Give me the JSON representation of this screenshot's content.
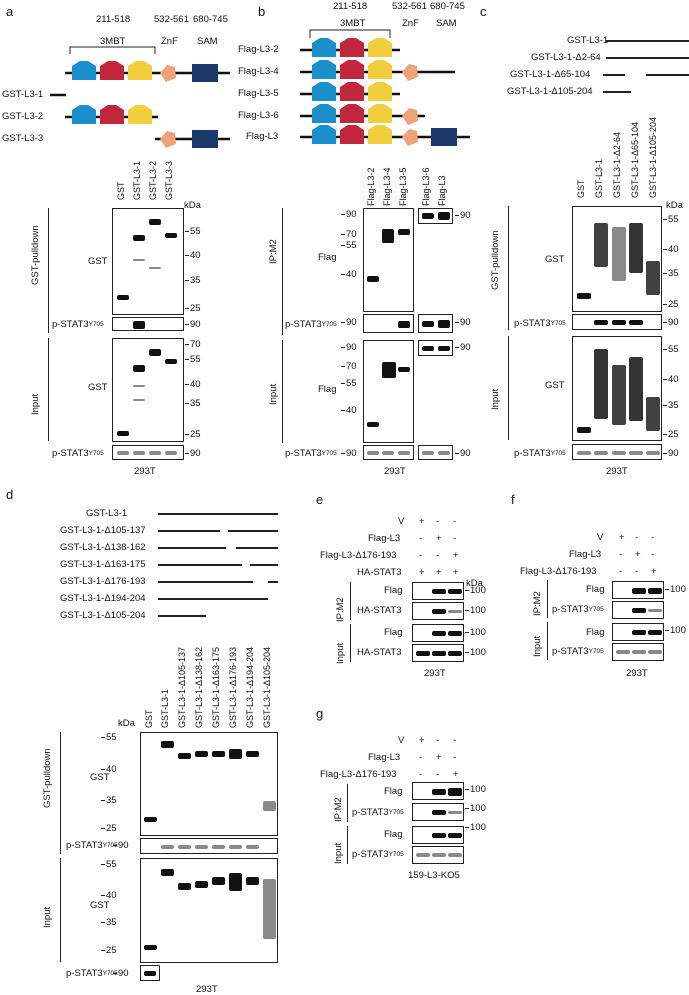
{
  "panels": {
    "a": {
      "letter": "a",
      "domain_ranges": [
        "211-518",
        "532-561",
        "680-745"
      ],
      "domain_names": [
        "3MBT",
        "ZnF",
        "SAM"
      ],
      "constructs": [
        "GST-L3-1",
        "GST-L3-2",
        "GST-L3-3"
      ],
      "lanes": [
        "GST",
        "GST-L3-1",
        "GST-L3-2",
        "GST-L3-3"
      ],
      "kda": "kDa",
      "pull_label": "GST-pulldown",
      "input_label": "Input",
      "row_gst": "GST",
      "row_pstat": "p-STAT3",
      "sup": "Y705",
      "mw_pull": [
        "55",
        "40",
        "35",
        "25"
      ],
      "mw_90": "90",
      "mw_input": [
        "70",
        "55",
        "40",
        "35",
        "25"
      ],
      "cell": "293T"
    },
    "b": {
      "letter": "b",
      "domain_ranges": [
        "211-518",
        "532-561",
        "680-745"
      ],
      "domain_names": [
        "3MBT",
        "ZnF",
        "SAM"
      ],
      "constructs": [
        "Flag-L3-2",
        "Flag-L3-4",
        "Flag-L3-5",
        "Flag-L3-6",
        "Flag-L3"
      ],
      "lanes": [
        "Flag-L3-2",
        "Flag-L3-4",
        "Flag-L3-5",
        "Flag-L3-6",
        "Flag-L3"
      ],
      "ip_label": "IP:M2",
      "input_label": "Input",
      "row_flag": "Flag",
      "row_pstat": "p-STAT3",
      "sup": "Y705",
      "mw_ip": [
        "90",
        "70",
        "55",
        "40"
      ],
      "mw_90": "90",
      "mw_input": [
        "90",
        "70",
        "55",
        "40"
      ],
      "cell": "293T"
    },
    "c": {
      "letter": "c",
      "constructs": [
        "GST-L3-1",
        "GST-L3-1-Δ2-64",
        "GST-L3-1-Δ65-104",
        "GST-L3-1-Δ105-204"
      ],
      "lanes": [
        "GST",
        "GST-L3-1",
        "GST-L3-1-Δ2-64",
        "GST-L3-1-Δ65-104",
        "GST-L3-1-Δ105-204"
      ],
      "kda": "kDa",
      "pull_label": "GST-pulldown",
      "input_label": "Input",
      "row_gst": "GST",
      "row_pstat": "p-STAT3",
      "sup": "Y705",
      "mw_pull": [
        "55",
        "40",
        "35",
        "25"
      ],
      "mw_90": "90",
      "mw_input": [
        "55",
        "40",
        "35",
        "25"
      ],
      "cell": "293T"
    },
    "d": {
      "letter": "d",
      "constructs": [
        "GST-L3-1",
        "GST-L3-1-Δ105-137",
        "GST-L3-1-Δ138-162",
        "GST-L3-1-Δ163-175",
        "GST-L3-1-Δ176-193",
        "GST-L3-1-Δ194-204",
        "GST-L3-1-Δ105-204"
      ],
      "lanes": [
        "GST",
        "GST-L3-1",
        "GST-L3-1-Δ105-137",
        "GST-L3-1-Δ138-162",
        "GST-L3-1-Δ163-175",
        "GST-L3-1-Δ176-193",
        "GST-L3-1-Δ194-204",
        "GST-L3-1-Δ105-204"
      ],
      "kda": "kDa",
      "pull_label": "GST-pulldown",
      "input_label": "Input",
      "row_gst": "GST",
      "row_pstat": "p-STAT3",
      "sup": "Y705",
      "mw_pull": [
        "55",
        "40",
        "35",
        "25"
      ],
      "mw_90": "90",
      "mw_input": [
        "55",
        "40",
        "35",
        "25"
      ],
      "cell": "293T"
    },
    "e": {
      "letter": "e",
      "rows": [
        "V",
        "Flag-L3",
        "Flag-L3-Δ176-193",
        "HA-STAT3"
      ],
      "signs": [
        [
          "+",
          "-",
          "-"
        ],
        [
          "-",
          "+",
          "-"
        ],
        [
          "-",
          "-",
          "+"
        ],
        [
          "+",
          "+",
          "+"
        ]
      ],
      "kda": "kDa",
      "ip_label": "IP:M2",
      "input_label": "Input",
      "blot_rows": [
        "Flag",
        "HA-STAT3",
        "Flag",
        "HA-STAT3"
      ],
      "mw": "100",
      "cell": "293T"
    },
    "f": {
      "letter": "f",
      "rows": [
        "V",
        "Flag-L3",
        "Flag-L3-Δ176-193"
      ],
      "signs": [
        [
          "+",
          "-",
          "-"
        ],
        [
          "-",
          "+",
          "-"
        ],
        [
          "-",
          "-",
          "+"
        ]
      ],
      "ip_label": "IP:M2",
      "input_label": "Input",
      "row_flag": "Flag",
      "row_pstat": "p-STAT3",
      "sup": "Y705",
      "mw": "100",
      "cell": "293T"
    },
    "g": {
      "letter": "g",
      "rows": [
        "V",
        "Flag-L3",
        "Flag-L3-Δ176-193"
      ],
      "signs": [
        [
          "+",
          "-",
          "-"
        ],
        [
          "-",
          "+",
          "-"
        ],
        [
          "-",
          "-",
          "+"
        ]
      ],
      "ip_label": "IP:M2",
      "input_label": "Input",
      "row_flag": "Flag",
      "row_pstat": "p-STAT3",
      "sup": "Y705",
      "mw": "100",
      "cell": "159-L3-KO5"
    }
  },
  "colors": {
    "mbt1": "#1b8fcb",
    "mbt2": "#c0273d",
    "mbt3": "#f1cf3c",
    "znf": "#eea27a",
    "sam": "#1b3a6b"
  }
}
